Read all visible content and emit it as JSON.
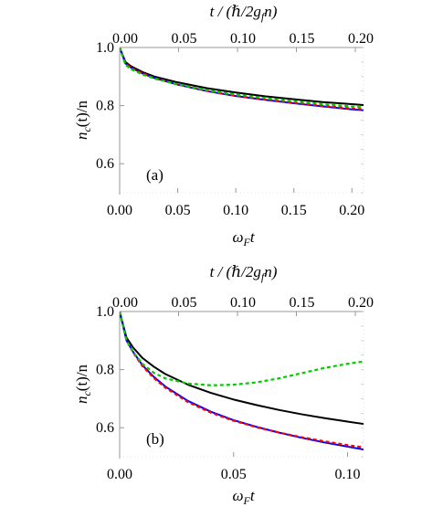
{
  "chart_data": [
    {
      "type": "line",
      "panel_label": "(a)",
      "xlabel": "ωFt",
      "ylabel": "nc(t)/n",
      "top_xlabel": "t / (ℏ/2gfn)",
      "xlim": [
        0,
        0.21
      ],
      "ylim": [
        0.5,
        1.0
      ],
      "top_xlim": [
        0,
        0.2
      ],
      "xticks": [
        "0.00",
        "0.05",
        "0.10",
        "0.15",
        "0.20"
      ],
      "top_xticks": [
        "0.00",
        "0.05",
        "0.10",
        "0.15",
        "0.20"
      ],
      "yticks": [
        "0.6",
        "0.8",
        "1.0"
      ],
      "grid": false,
      "series": [
        {
          "color": "#000000",
          "style": "solid",
          "x": [
            0,
            0.005,
            0.01,
            0.02,
            0.03,
            0.05,
            0.075,
            0.1,
            0.125,
            0.15,
            0.175,
            0.2,
            0.21
          ],
          "y": [
            1.0,
            0.95,
            0.935,
            0.915,
            0.9,
            0.88,
            0.86,
            0.845,
            0.832,
            0.822,
            0.812,
            0.805,
            0.802
          ]
        },
        {
          "color": "#0000ff",
          "style": "solid",
          "x": [
            0,
            0.005,
            0.01,
            0.02,
            0.03,
            0.05,
            0.075,
            0.1,
            0.125,
            0.15,
            0.175,
            0.2,
            0.21
          ],
          "y": [
            1.0,
            0.945,
            0.93,
            0.91,
            0.895,
            0.872,
            0.85,
            0.833,
            0.82,
            0.808,
            0.797,
            0.787,
            0.784
          ]
        },
        {
          "color": "#ff0000",
          "style": "dashed",
          "x": [
            0,
            0.005,
            0.01,
            0.02,
            0.03,
            0.05,
            0.075,
            0.1,
            0.125,
            0.15,
            0.175,
            0.2,
            0.21
          ],
          "y": [
            1.0,
            0.945,
            0.93,
            0.91,
            0.895,
            0.873,
            0.851,
            0.834,
            0.821,
            0.81,
            0.799,
            0.79,
            0.787
          ]
        },
        {
          "color": "#00cc00",
          "style": "dashed",
          "x": [
            0,
            0.005,
            0.01,
            0.02,
            0.03,
            0.05,
            0.075,
            0.1,
            0.125,
            0.15,
            0.175,
            0.2,
            0.21
          ],
          "y": [
            1.0,
            0.94,
            0.925,
            0.907,
            0.893,
            0.873,
            0.853,
            0.838,
            0.826,
            0.815,
            0.805,
            0.797,
            0.794
          ]
        }
      ]
    },
    {
      "type": "line",
      "panel_label": "(b)",
      "xlabel": "ωFt",
      "ylabel": "nc(t)/n",
      "top_xlabel": "t / (ℏ/2gfn)",
      "xlim": [
        0,
        0.107
      ],
      "ylim": [
        0.5,
        1.0
      ],
      "top_xlim": [
        0,
        0.2
      ],
      "xticks": [
        "0.00",
        "0.05",
        "0.10"
      ],
      "top_xticks": [
        "0.00",
        "0.05",
        "0.10",
        "0.15",
        "0.20"
      ],
      "yticks": [
        "0.6",
        "0.8",
        "1.0"
      ],
      "grid": false,
      "series": [
        {
          "color": "#000000",
          "style": "solid",
          "x": [
            0,
            0.003,
            0.006,
            0.01,
            0.015,
            0.02,
            0.03,
            0.04,
            0.05,
            0.06,
            0.07,
            0.08,
            0.09,
            0.1,
            0.107
          ],
          "y": [
            1.0,
            0.91,
            0.875,
            0.84,
            0.81,
            0.785,
            0.748,
            0.72,
            0.697,
            0.678,
            0.661,
            0.646,
            0.633,
            0.621,
            0.613
          ]
        },
        {
          "color": "#0000ff",
          "style": "solid",
          "x": [
            0,
            0.003,
            0.006,
            0.01,
            0.015,
            0.02,
            0.03,
            0.04,
            0.05,
            0.06,
            0.07,
            0.08,
            0.09,
            0.1,
            0.107
          ],
          "y": [
            1.0,
            0.9,
            0.86,
            0.815,
            0.775,
            0.742,
            0.692,
            0.655,
            0.626,
            0.603,
            0.583,
            0.565,
            0.549,
            0.535,
            0.525
          ]
        },
        {
          "color": "#ff0000",
          "style": "dashed",
          "x": [
            0,
            0.003,
            0.006,
            0.01,
            0.015,
            0.02,
            0.03,
            0.04,
            0.05,
            0.06,
            0.07,
            0.08,
            0.09,
            0.1,
            0.107
          ],
          "y": [
            1.0,
            0.9,
            0.858,
            0.812,
            0.771,
            0.738,
            0.688,
            0.652,
            0.624,
            0.602,
            0.583,
            0.567,
            0.553,
            0.54,
            0.532
          ]
        },
        {
          "color": "#00cc00",
          "style": "dashed",
          "x": [
            0,
            0.003,
            0.006,
            0.01,
            0.015,
            0.02,
            0.03,
            0.04,
            0.05,
            0.06,
            0.07,
            0.08,
            0.09,
            0.1,
            0.107
          ],
          "y": [
            1.0,
            0.9,
            0.86,
            0.82,
            0.789,
            0.77,
            0.752,
            0.746,
            0.748,
            0.756,
            0.77,
            0.788,
            0.806,
            0.82,
            0.828
          ]
        }
      ]
    }
  ]
}
